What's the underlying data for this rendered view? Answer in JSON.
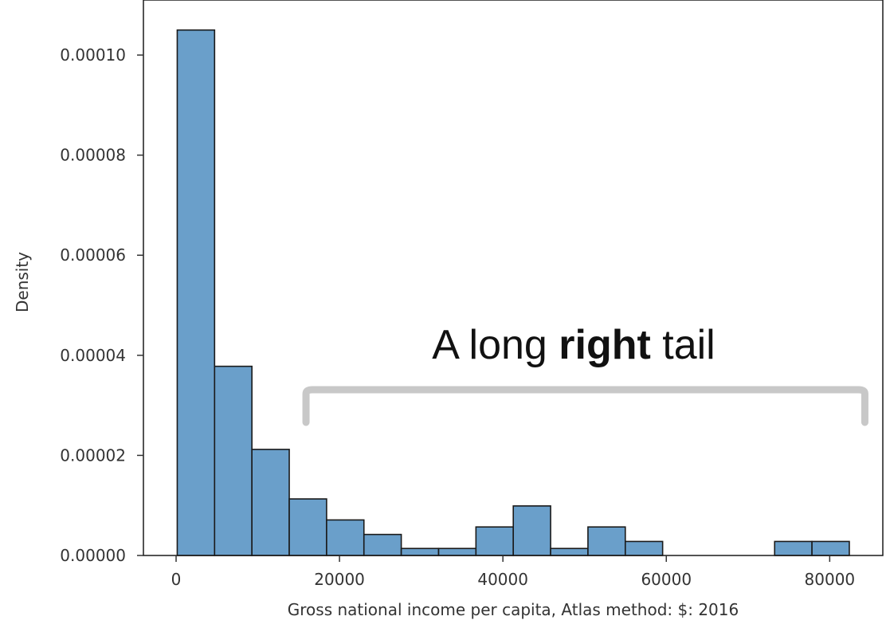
{
  "chart_data": {
    "type": "bar",
    "title": "",
    "xlabel": "Gross national income per capita, Atlas method: $: 2016",
    "ylabel": "Density",
    "xlim": [
      -4000,
      86500
    ],
    "ylim": [
      0,
      0.000111
    ],
    "x_ticks": [
      "0",
      "20000",
      "40000",
      "60000",
      "80000"
    ],
    "x_tick_values": [
      0,
      20000,
      40000,
      60000,
      80000
    ],
    "y_ticks": [
      "0.00000",
      "0.00002",
      "0.00004",
      "0.00006",
      "0.00008",
      "0.00010"
    ],
    "y_tick_values": [
      0,
      2e-05,
      4e-05,
      6e-05,
      8e-05,
      0.0001
    ],
    "bin_edges": [
      140,
      4710,
      9280,
      13850,
      18420,
      22990,
      27560,
      32130,
      36700,
      41270,
      45840,
      50410,
      54980,
      59550,
      64120,
      68690,
      73260,
      77830,
      82400
    ],
    "values": [
      0.000105,
      3.78e-05,
      2.12e-05,
      1.13e-05,
      7.1e-06,
      4.2e-06,
      1.4e-06,
      1.4e-06,
      5.7e-06,
      9.9e-06,
      1.4e-06,
      5.7e-06,
      2.8e-06,
      0,
      0,
      0,
      2.8e-06,
      2.8e-06
    ],
    "bar_color": "#6a9fca",
    "edge_color": "#1a1a1a",
    "grid": false,
    "legend": "none",
    "annotation": {
      "prefix": "A long ",
      "bold": "right",
      "suffix": " tail",
      "bracket_from": 15900,
      "bracket_to": 84300,
      "bracket_color": "#c8c8c8"
    }
  }
}
